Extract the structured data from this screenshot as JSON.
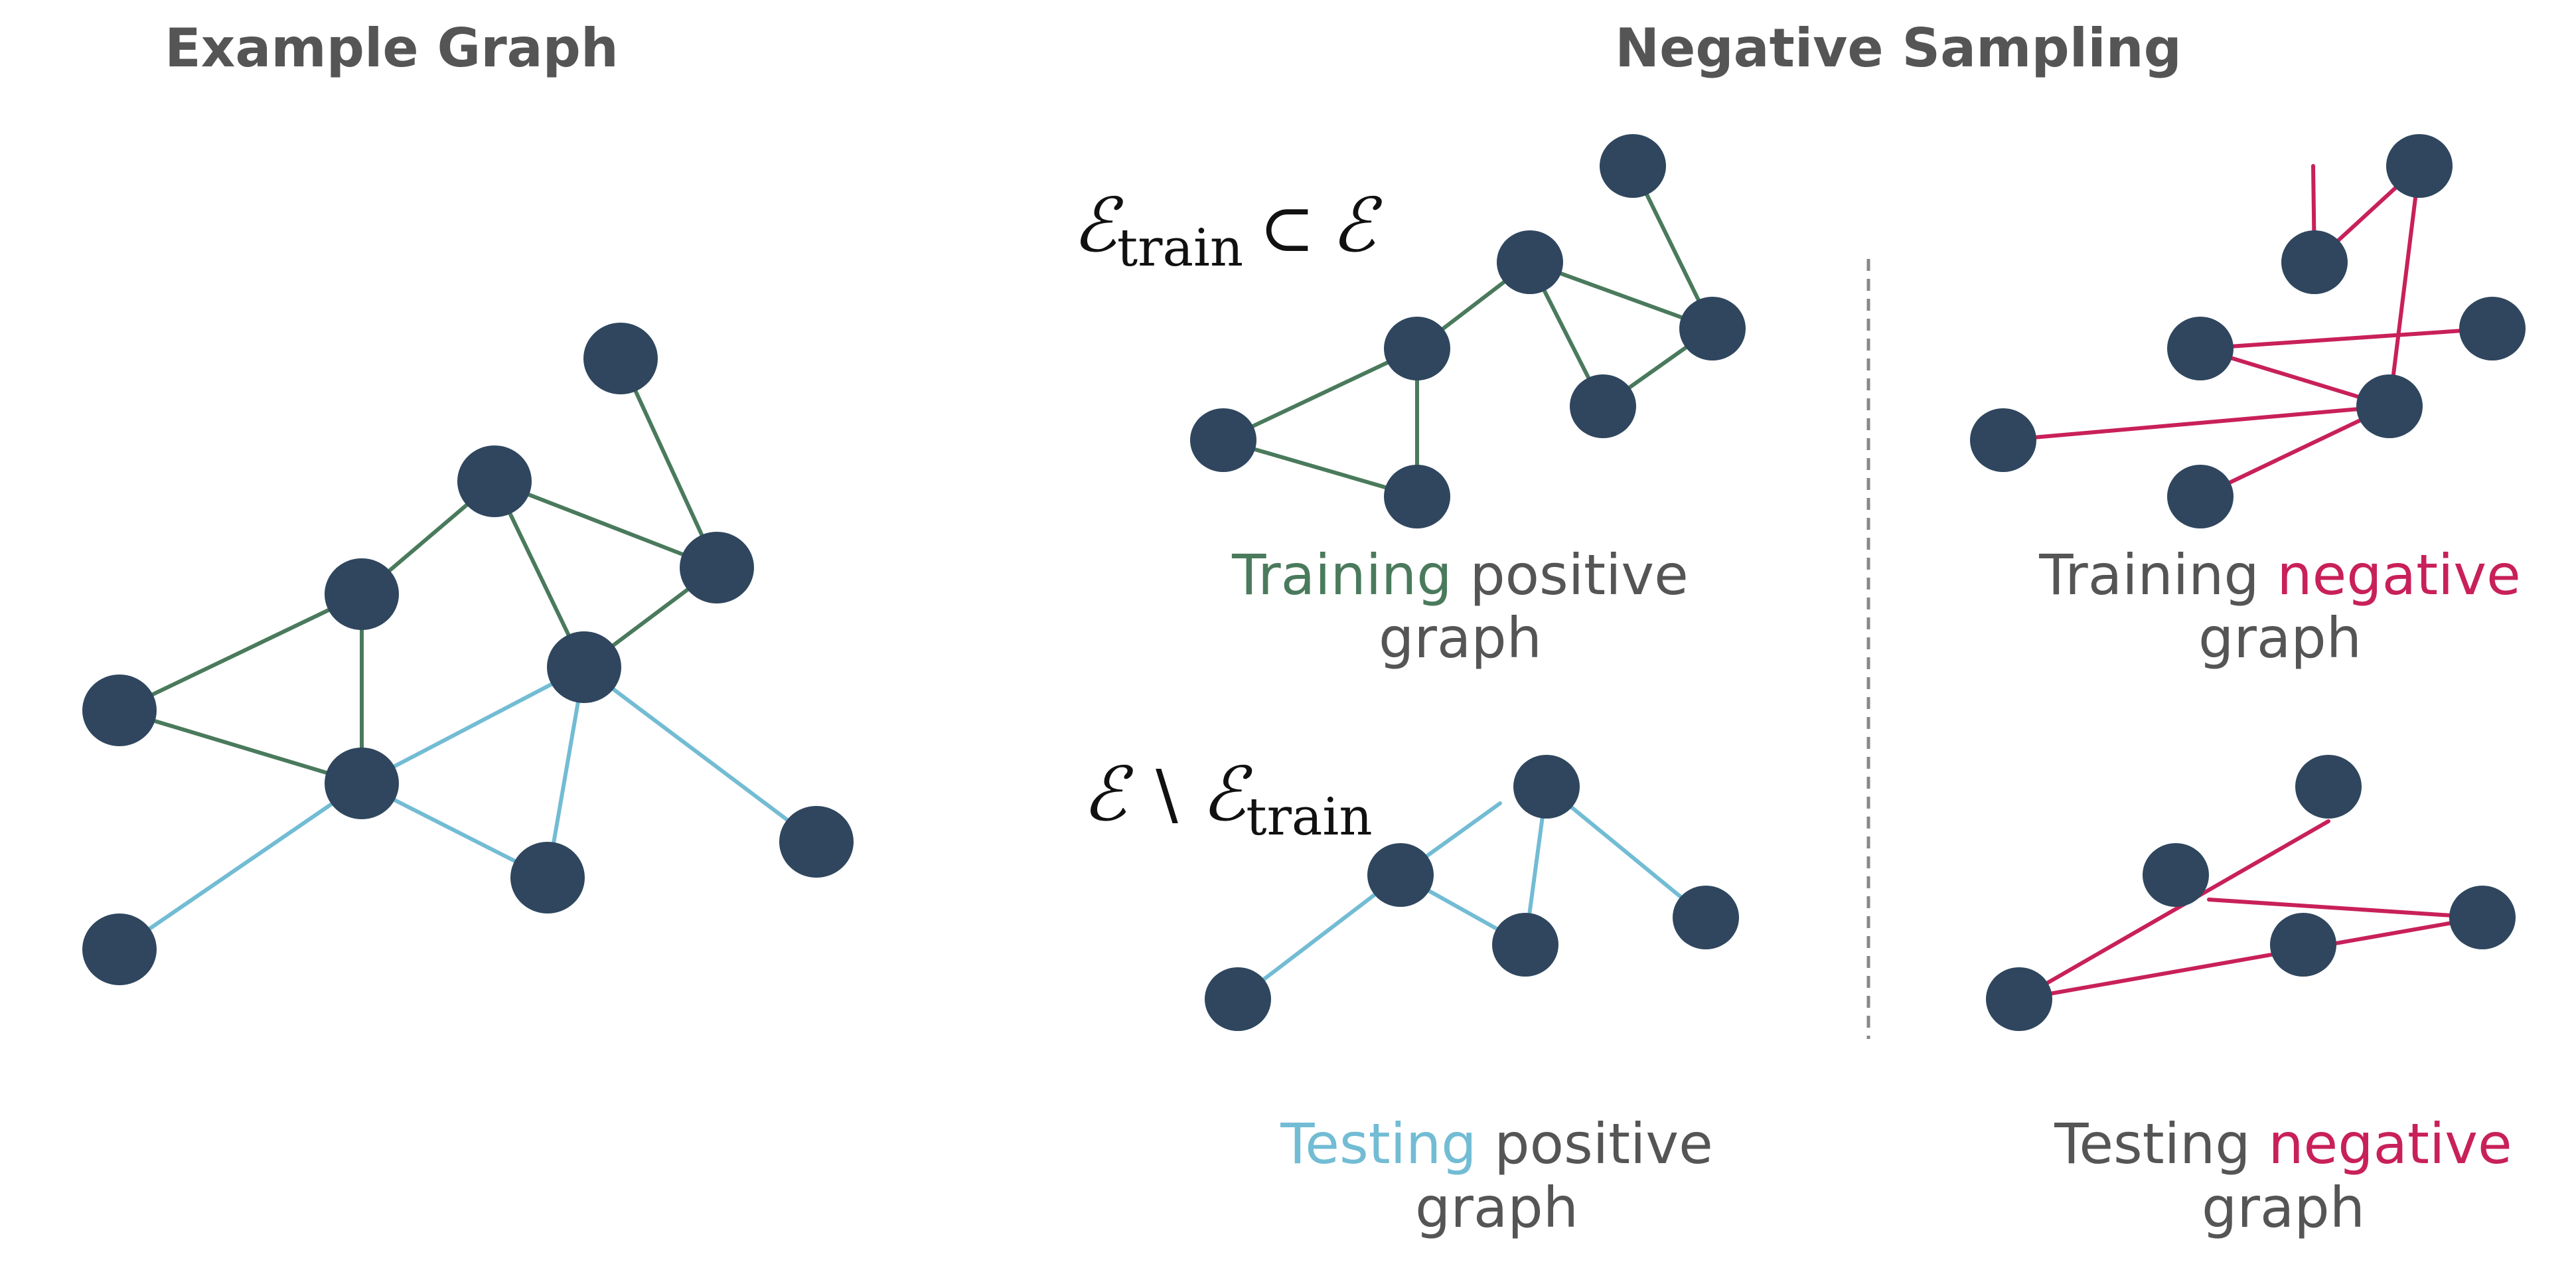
{
  "headings": {
    "left": "Example Graph",
    "right": "Negative Sampling"
  },
  "math": {
    "train_set": {
      "symbol": "ℰ",
      "subscript": "train",
      "relation": "⊂",
      "rhs": "ℰ"
    },
    "test_set": {
      "lhs": "ℰ",
      "relation": "∖",
      "symbol": "ℰ",
      "subscript": "train"
    }
  },
  "captions": {
    "train_pos": {
      "word": "Training",
      "rest": " positive",
      "line2": "graph"
    },
    "train_neg": {
      "word_pre": "Training ",
      "word": "negative",
      "line2": "graph"
    },
    "test_pos": {
      "word": "Testing",
      "rest": " positive",
      "line2": "graph"
    },
    "test_neg": {
      "word_pre": "Testing ",
      "word": "negative",
      "line2": "graph"
    }
  },
  "colors": {
    "node": "#2f465e",
    "train_edge": "#4a7a5c",
    "test_edge": "#72bcd4",
    "negative_edge": "#c8205a",
    "text": "#555555"
  }
}
